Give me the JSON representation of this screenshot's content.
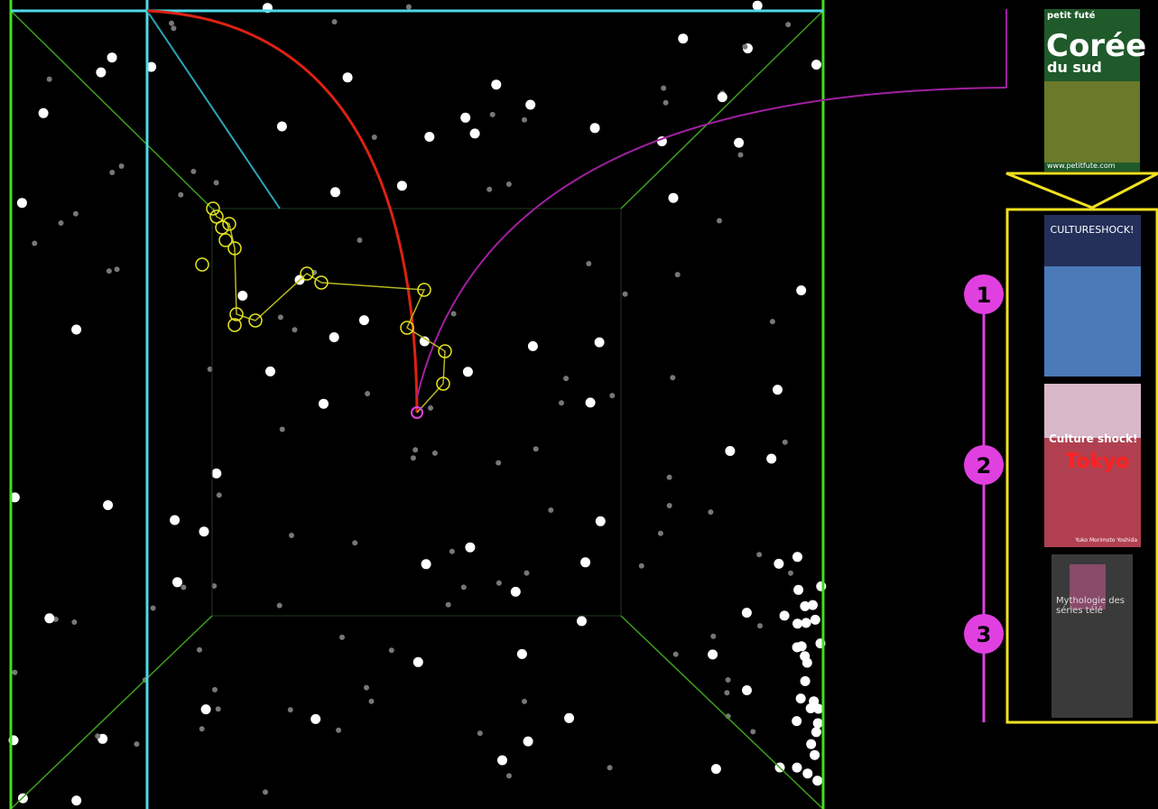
{
  "top_cover": {
    "brand": "petit futé",
    "title": "Corée",
    "subtitle": "du sud",
    "url": "www.petitfute.com"
  },
  "results": [
    {
      "rank": 1,
      "brand": "CULTURESHOCK!"
    },
    {
      "rank": 2,
      "title": "Culture shock!",
      "subtitle": "Tokyo",
      "author": "Yuko Morimoto Yoshida"
    },
    {
      "rank": 3,
      "title": "Mythologie des séries télé"
    }
  ]
}
